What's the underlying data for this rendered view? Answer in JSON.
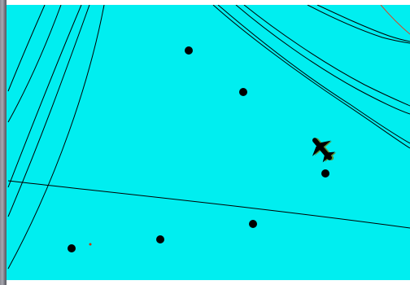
{
  "map": {
    "background_color": "#00eef0",
    "line_color": "#000000",
    "accent_line_color": "#d04a2a",
    "marker_color": "#000000",
    "aircraft_icon": "airplane-icon",
    "aircraft_color": "#000000",
    "aircraft_shadow_color": "#6b8e23",
    "small_marker_color": "#cc3300"
  }
}
